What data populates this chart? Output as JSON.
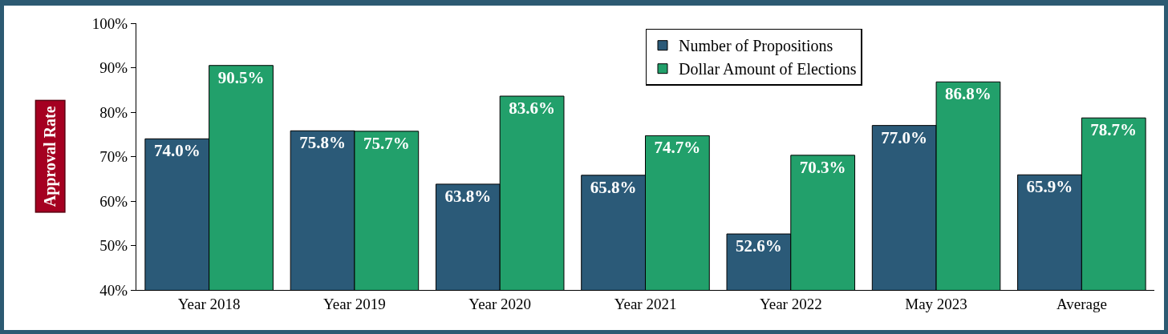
{
  "chart_data": {
    "type": "bar",
    "ylabel": "Approval Rate",
    "categories": [
      "Year 2018",
      "Year 2019",
      "Year 2020",
      "Year 2021",
      "Year 2022",
      "May 2023",
      "Average"
    ],
    "series": [
      {
        "name": "Number of Propositions",
        "color": "#2b5a78",
        "values": [
          74.0,
          75.8,
          63.8,
          65.8,
          52.6,
          77.0,
          65.9
        ],
        "value_labels": [
          "74.0%",
          "75.8%",
          "63.8%",
          "65.8%",
          "52.6%",
          "77.0%",
          "65.9%"
        ]
      },
      {
        "name": "Dollar Amount of Elections",
        "color": "#22a06b",
        "values": [
          90.5,
          75.7,
          83.6,
          74.7,
          70.3,
          86.8,
          78.7
        ],
        "value_labels": [
          "90.5%",
          "75.7%",
          "83.6%",
          "74.7%",
          "70.3%",
          "86.8%",
          "78.7%"
        ]
      }
    ],
    "ylim": [
      40,
      100
    ],
    "yticks": [
      {
        "value": 40,
        "label": "40%"
      },
      {
        "value": 50,
        "label": "50%"
      },
      {
        "value": 60,
        "label": "60%"
      },
      {
        "value": 70,
        "label": "70%"
      },
      {
        "value": 80,
        "label": "80%"
      },
      {
        "value": 90,
        "label": "90%"
      },
      {
        "value": 100,
        "label": "100%"
      }
    ],
    "grid": false,
    "legend": "top"
  }
}
